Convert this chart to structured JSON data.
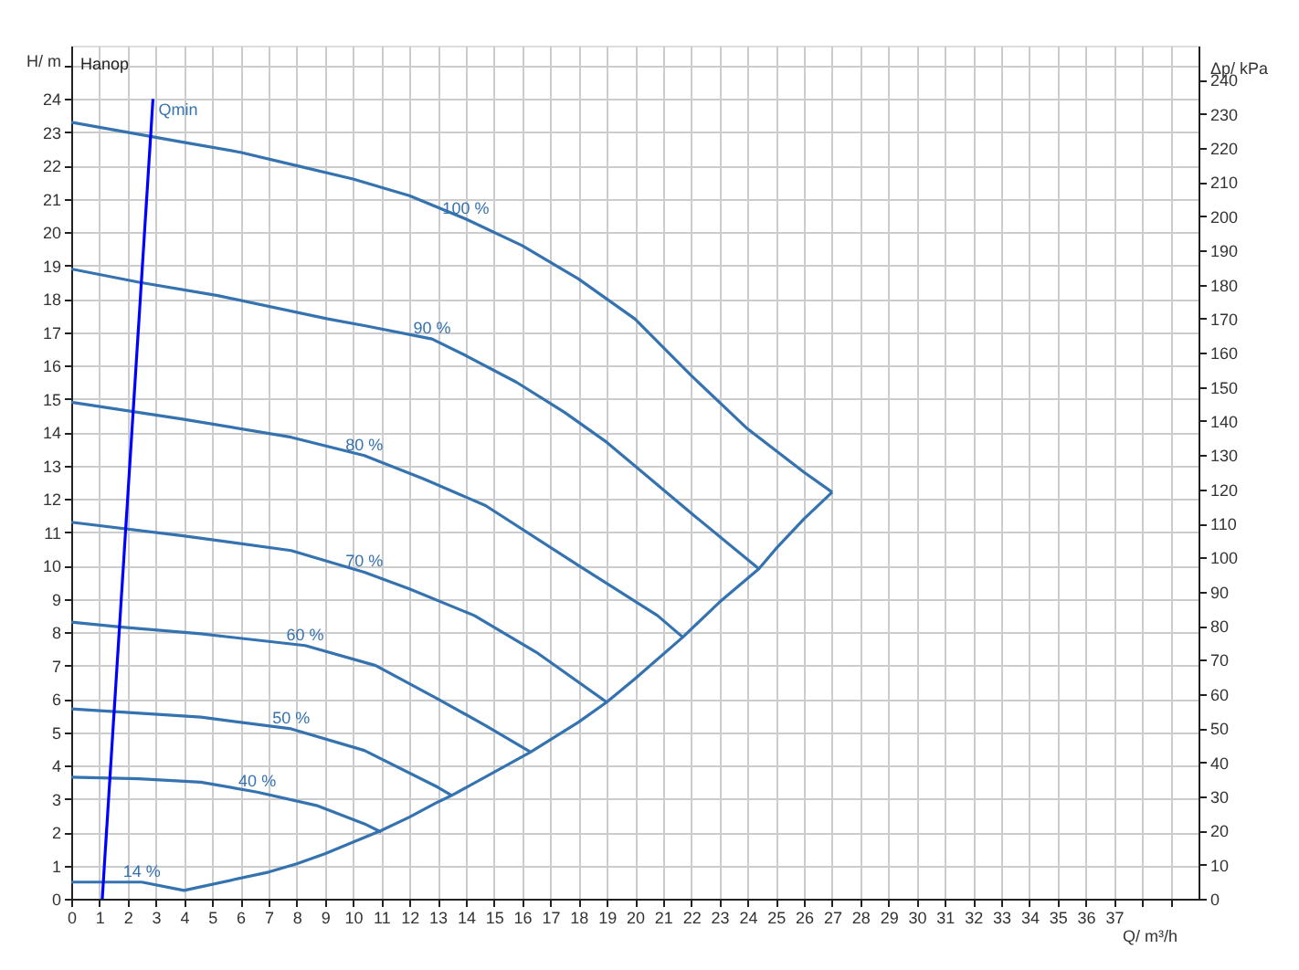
{
  "chart_data": {
    "type": "line",
    "xlabel": "Q/ m³/h",
    "ylabel": "H/ m",
    "y2label": "Δp/ kPa",
    "xlim": [
      0,
      40
    ],
    "ylim": [
      0,
      25.6
    ],
    "y2lim": [
      0,
      250
    ],
    "xticks": [
      0,
      1,
      2,
      3,
      4,
      5,
      6,
      7,
      8,
      9,
      10,
      11,
      12,
      13,
      14,
      15,
      16,
      17,
      18,
      19,
      20,
      21,
      22,
      23,
      24,
      25,
      26,
      27,
      28,
      29,
      30,
      31,
      32,
      33,
      34,
      35,
      36,
      37,
      {
        "value": 38,
        "label": null
      },
      {
        "value": 39,
        "label": null
      }
    ],
    "yticks": [
      0,
      1,
      2,
      3,
      4,
      5,
      6,
      7,
      8,
      9,
      10,
      11,
      12,
      13,
      14,
      15,
      16,
      17,
      18,
      19,
      20,
      21,
      22,
      23,
      24,
      {
        "value": 25,
        "label": null
      }
    ],
    "y2ticks": [
      0,
      10,
      20,
      30,
      40,
      50,
      60,
      70,
      80,
      90,
      100,
      110,
      120,
      130,
      140,
      150,
      160,
      170,
      180,
      190,
      200,
      210,
      220,
      230,
      240
    ],
    "grid": true,
    "line_style": "solid",
    "marker": "none",
    "series": [
      {
        "color": "#3572b0",
        "x": [
          0,
          2,
          4,
          6,
          8,
          10,
          12,
          14,
          16,
          18,
          20,
          22,
          24,
          26,
          27
        ],
        "values": [
          23.3,
          23.0,
          22.7,
          22.4,
          22.0,
          21.6,
          21.1,
          20.4,
          19.6,
          18.6,
          17.4,
          15.7,
          14.1,
          12.8,
          12.2
        ]
      },
      {
        "color": "#3572b0",
        "x": [
          0,
          2.4,
          5.2,
          9.1,
          10.4,
          12.8,
          14,
          15.8,
          17.5,
          19,
          22.1,
          24.4
        ],
        "values": [
          18.9,
          18.5,
          18.1,
          17.4,
          17.2,
          16.8,
          16.3,
          15.5,
          14.6,
          13.7,
          11.5,
          9.9
        ]
      },
      {
        "color": "#3572b0",
        "x": [
          0,
          3.9,
          7.8,
          10.4,
          12.5,
          14.7,
          18,
          20.8,
          21.7
        ],
        "values": [
          14.9,
          14.4,
          13.85,
          13.3,
          12.6,
          11.8,
          10.0,
          8.5,
          7.85
        ]
      },
      {
        "color": "#3572b0",
        "x": [
          0,
          3.9,
          7.8,
          10.4,
          12,
          14.3,
          16.5,
          19
        ],
        "values": [
          11.3,
          10.9,
          10.45,
          9.8,
          9.3,
          8.5,
          7.4,
          5.9
        ]
      },
      {
        "color": "#3572b0",
        "x": [
          0,
          1.8,
          4.6,
          8.3,
          10.8,
          13,
          14.7,
          16.3
        ],
        "values": [
          8.3,
          8.15,
          7.95,
          7.6,
          7.0,
          6.0,
          5.2,
          4.4
        ]
      },
      {
        "color": "#3572b0",
        "x": [
          0,
          1.8,
          4.6,
          7.8,
          10.4,
          13,
          13.5
        ],
        "values": [
          5.7,
          5.6,
          5.45,
          5.1,
          4.45,
          3.35,
          3.1
        ]
      },
      {
        "color": "#3572b0",
        "x": [
          0,
          2.4,
          4.6,
          6.6,
          8.7,
          10.4,
          11
        ],
        "values": [
          3.65,
          3.6,
          3.5,
          3.2,
          2.8,
          2.25,
          2.0
        ]
      },
      {
        "color": "#3572b0",
        "x": [
          0,
          2.5,
          4,
          7,
          8,
          9,
          10,
          11,
          12,
          13,
          13.5,
          16.3,
          18,
          19,
          20,
          21.7,
          23,
          24.4,
          25,
          26,
          27
        ],
        "values": [
          0.5,
          0.5,
          0.25,
          0.8,
          1.05,
          1.35,
          1.7,
          2.05,
          2.45,
          2.9,
          3.1,
          4.4,
          5.3,
          5.9,
          6.6,
          7.85,
          8.9,
          9.9,
          10.5,
          11.4,
          12.2
        ]
      },
      {
        "color": "#0000ff",
        "x": [
          1.1,
          2.9
        ],
        "values": [
          0,
          24
        ]
      }
    ],
    "annotations": [
      "Hanop",
      {
        "text": "100 %",
        "x": 14,
        "y": 20.4
      },
      {
        "text": "90 %",
        "x": 12.8,
        "y": 16.8
      },
      {
        "text": "80 %",
        "x": 10.4,
        "y": 13.3
      },
      {
        "text": "70 %",
        "x": 10.4,
        "y": 9.8
      },
      {
        "text": "60 %",
        "x": 8.3,
        "y": 7.6
      },
      {
        "text": "50 %",
        "x": 7.8,
        "y": 5.1
      },
      {
        "text": "40 %",
        "x": 6.6,
        "y": 3.2
      },
      {
        "text": "14 %",
        "x": 2.5,
        "y": 0.5
      },
      {
        "text": "Qmin",
        "x": 2.9,
        "y": 24
      }
    ]
  }
}
